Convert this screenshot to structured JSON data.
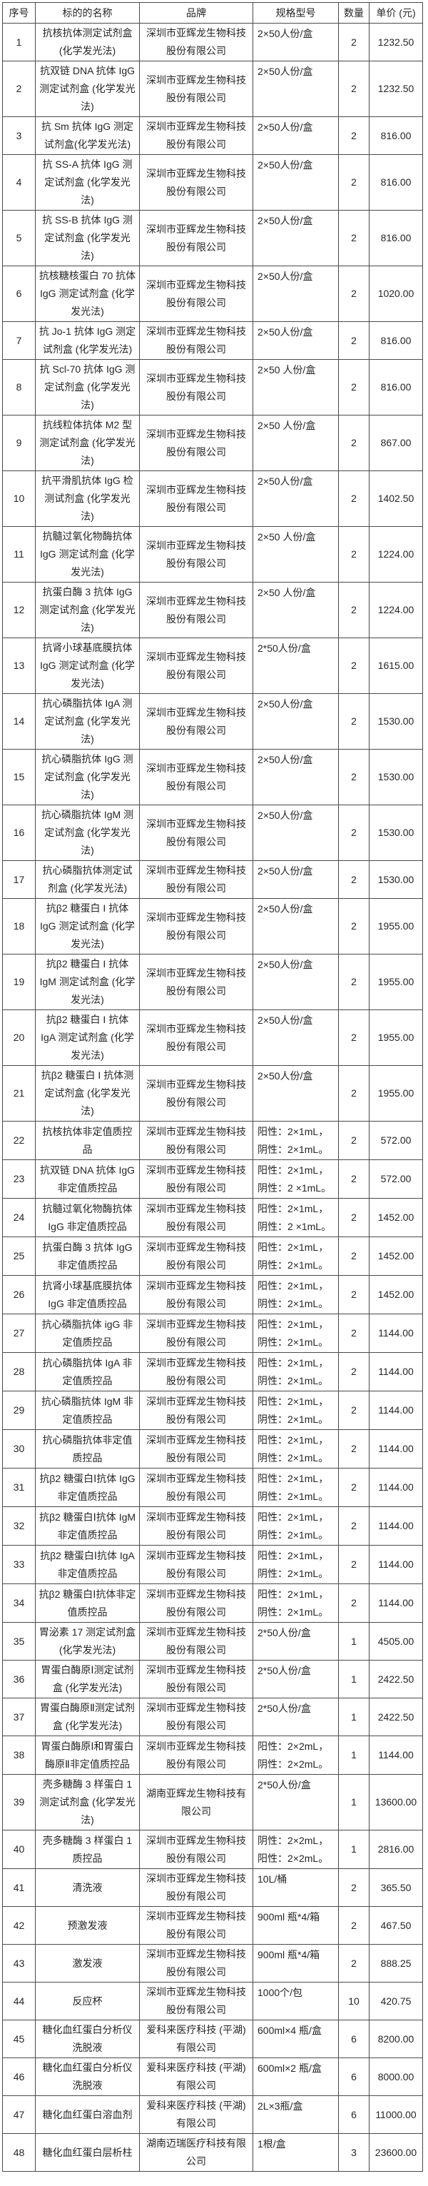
{
  "colors": {
    "border": "#4a4a4a",
    "text": "#262626",
    "background": "#ffffff"
  },
  "table": {
    "headers": [
      "序号",
      "标的的名称",
      "品牌",
      "规格型号",
      "数量",
      "单价 (元)"
    ],
    "rows": [
      {
        "no": "1",
        "name": "抗核抗体测定试剂盒 (化学发光法)",
        "brand": "深圳市亚辉龙生物科技股份有限公司",
        "spec": "2×50人份/盒",
        "qty": "2",
        "price": "1232.50"
      },
      {
        "no": "2",
        "name": "抗双链 DNA 抗体 IgG 测定试剂盒 (化学发光法)",
        "brand": "深圳市亚辉龙生物科技股份有限公司",
        "spec": "2×50人份/盒",
        "qty": "2",
        "price": "1232.50"
      },
      {
        "no": "3",
        "name": "抗 Sm 抗体 IgG 测定试剂盒(化学发光法)",
        "brand": "深圳市亚辉龙生物科技股份有限公司",
        "spec": "2×50人份/盒",
        "qty": "2",
        "price": "816.00"
      },
      {
        "no": "4",
        "name": "抗 SS-A 抗体 IgG 测定试剂盒 (化学发光法)",
        "brand": "深圳市亚辉龙生物科技股份有限公司",
        "spec": "2×50人份/盒",
        "qty": "2",
        "price": "816.00"
      },
      {
        "no": "5",
        "name": "抗 SS-B 抗体 IgG 测定试剂盒 (化学发光法)",
        "brand": "深圳市亚辉龙生物科技股份有限公司",
        "spec": "2×50人份/盒",
        "qty": "2",
        "price": "816.00"
      },
      {
        "no": "6",
        "name": "抗核糖核蛋白 70 抗体 IgG 测定试剂盒 (化学发光法)",
        "brand": "深圳市亚辉龙生物科技股份有限公司",
        "spec": "2×50人份/盒",
        "qty": "2",
        "price": "1020.00"
      },
      {
        "no": "7",
        "name": "抗 Jo-1 抗体 IgG 测定试剂盒 (化学发光法)",
        "brand": "深圳市亚辉龙生物科技股份有限公司",
        "spec": "2×50人份/盒",
        "qty": "2",
        "price": "816.00"
      },
      {
        "no": "8",
        "name": "抗 Scl-70 抗体 IgG 测定试剂盒 (化学发光法)",
        "brand": "深圳市亚辉龙生物科技股份有限公司",
        "spec": "2×50 人份/盒",
        "qty": "2",
        "price": "816.00"
      },
      {
        "no": "9",
        "name": "抗线粒体抗体 M2 型测定试剂盒 (化学发光法)",
        "brand": "深圳市亚辉龙生物科技股份有限公司",
        "spec": "2×50 人份/盒",
        "qty": "2",
        "price": "867.00"
      },
      {
        "no": "10",
        "name": "抗平滑肌抗体 IgG 检测试剂盒 (化学发光法)",
        "brand": "深圳市亚辉龙生物科技股份有限公司",
        "spec": "2×50人份/盒",
        "qty": "2",
        "price": "1402.50"
      },
      {
        "no": "11",
        "name": "抗髓过氧化物酶抗体 IgG 测定试剂盒 (化学发光法)",
        "brand": "深圳市亚辉龙生物科技股份有限公司",
        "spec": "2×50 人份/盒",
        "qty": "2",
        "price": "1224.00"
      },
      {
        "no": "12",
        "name": "抗蛋白酶 3 抗体 IgG 测定试剂盒 (化学发光法)",
        "brand": "深圳市亚辉龙生物科技股份有限公司",
        "spec": "2×50 人份/盒",
        "qty": "2",
        "price": "1224.00"
      },
      {
        "no": "13",
        "name": "抗肾小球基底膜抗体 IgG 测定试剂盒 (化学发光法)",
        "brand": "深圳市亚辉龙生物科技股份有限公司",
        "spec": "2*50人份/盒",
        "qty": "2",
        "price": "1615.00"
      },
      {
        "no": "14",
        "name": "抗心磷脂抗体 IgA 测定试剂盒 (化学发光法)",
        "brand": "深圳市亚辉龙生物科技股份有限公司",
        "spec": "2×50人份/盒",
        "qty": "2",
        "price": "1530.00"
      },
      {
        "no": "15",
        "name": "抗心磷脂抗体 IgG 测定试剂盒 (化学发光法)",
        "brand": "深圳市亚辉龙生物科技股份有限公司",
        "spec": "2×50人份/盒",
        "qty": "2",
        "price": "1530.00"
      },
      {
        "no": "16",
        "name": "抗心磷脂抗体 IgM 测定试剂盒 (化学发光法)",
        "brand": "深圳市亚辉龙生物科技股份有限公司",
        "spec": "2×50人份/盒",
        "qty": "2",
        "price": "1530.00"
      },
      {
        "no": "17",
        "name": "抗心磷脂抗体测定试剂盒 (化学发光法)",
        "brand": "深圳市亚辉龙生物科技股份有限公司",
        "spec": "2×50人份/盒",
        "qty": "2",
        "price": "1530.00"
      },
      {
        "no": "18",
        "name": "抗β2 糖蛋白 I 抗体 IgG 测定试剂盒 (化学发光法)",
        "brand": "深圳市亚辉龙生物科技股份有限公司",
        "spec": "2×50人份/盒",
        "qty": "2",
        "price": "1955.00"
      },
      {
        "no": "19",
        "name": "抗β2 糖蛋白 I 抗体 IgM 测定试剂盒 (化学发光法)",
        "brand": "深圳市亚辉龙生物科技股份有限公司",
        "spec": "2×50人份/盒",
        "qty": "2",
        "price": "1955.00"
      },
      {
        "no": "20",
        "name": "抗β2 糖蛋白 I 抗体 IgA 测定试剂盒 (化学发光法)",
        "brand": "深圳市亚辉龙生物科技股份有限公司",
        "spec": "2×50人份/盒",
        "qty": "2",
        "price": "1955.00"
      },
      {
        "no": "21",
        "name": "抗β2 糖蛋白 I 抗体测定试剂盒 (化学发光法)",
        "brand": "深圳市亚辉龙生物科技股份有限公司",
        "spec": "2×50人份/盒",
        "qty": "2",
        "price": "1955.00"
      },
      {
        "no": "22",
        "name": "抗核抗体非定值质控品",
        "brand": "深圳市亚辉龙生物科技股份有限公司",
        "spec": "阳性：2×1mL，阴性：2×1mL。",
        "qty": "2",
        "price": "572.00"
      },
      {
        "no": "23",
        "name": "抗双链 DNA 抗体 IgG 非定值质控品",
        "brand": "深圳市亚辉龙生物科技股份有限公司",
        "spec": "阳性：2×1mL，阴性：2 ×1mL。",
        "qty": "2",
        "price": "572.00"
      },
      {
        "no": "24",
        "name": "抗髓过氧化物酶抗体 IgG 非定值质控品",
        "brand": "深圳市亚辉龙生物科技股份有限公司",
        "spec": "阳性：2×1mL，阴性：2 ×1mL。",
        "qty": "2",
        "price": "1452.00"
      },
      {
        "no": "25",
        "name": "抗蛋白酶 3 抗体 IgG 非定值质控品",
        "brand": "深圳市亚辉龙生物科技股份有限公司",
        "spec": "阳性：2×1mL，阴性：2×1mL。",
        "qty": "2",
        "price": "1452.00"
      },
      {
        "no": "26",
        "name": "抗肾小球基底膜抗体 IgG 非定值质控品",
        "brand": "深圳市亚辉龙生物科技股份有限公司",
        "spec": "阳性：2×1mL，阴性：2×1mL。",
        "qty": "2",
        "price": "1452.00"
      },
      {
        "no": "27",
        "name": "抗心磷脂抗体 igG 非定值质控品",
        "brand": "深圳市亚辉龙生物科技股份有限公司",
        "spec": "阳性：2×1mL，阴性：2×1mL。",
        "qty": "2",
        "price": "1144.00"
      },
      {
        "no": "28",
        "name": "抗心磷脂抗体 IgA 非定值质控品",
        "brand": "深圳市亚辉龙生物科技股份有限公司",
        "spec": "阳性：2×1mL，阴性：2×1mL。",
        "qty": "2",
        "price": "1144.00"
      },
      {
        "no": "29",
        "name": "抗心磷脂抗体 IgM 非定值质控品",
        "brand": "深圳市亚辉龙生物科技股份有限公司",
        "spec": "阳性：2×1mL，阴性：2×1mL。",
        "qty": "2",
        "price": "1144.00"
      },
      {
        "no": "30",
        "name": "抗心磷脂抗体非定值质控品",
        "brand": "深圳市亚辉龙生物科技股份有限公司",
        "spec": "阳性：2×1mL，阴性：2×1mL。",
        "qty": "2",
        "price": "1144.00"
      },
      {
        "no": "31",
        "name": "抗β2 糖蛋白Ⅰ抗体 IgG 非定值质控品",
        "brand": "深圳市亚辉龙生物科技股份有限公司",
        "spec": "阳性：2×1mL，阴性：2×1mL。",
        "qty": "2",
        "price": "1144.00"
      },
      {
        "no": "32",
        "name": "抗β2 糖蛋白Ⅰ抗体 IgM 非定值质控品",
        "brand": "深圳市亚辉龙生物科技股份有限公司",
        "spec": "阳性：2×1mL，阴性：2×1mL。",
        "qty": "2",
        "price": "1144.00"
      },
      {
        "no": "33",
        "name": "抗β2 糖蛋白Ⅰ抗体 IgA 非定值质控品",
        "brand": "深圳市亚辉龙生物科技股份有限公司",
        "spec": "阳性：2×1mL，阴性：2×1mL。",
        "qty": "2",
        "price": "1144.00"
      },
      {
        "no": "34",
        "name": "抗β2 糖蛋白Ⅰ抗体非定值质控品",
        "brand": "深圳市亚辉龙生物科技股份有限公司",
        "spec": "阳性：2×1mL，阴性：2×1mL。",
        "qty": "2",
        "price": "1144.00"
      },
      {
        "no": "35",
        "name": "胃泌素 17 测定试剂盒 (化学发光法)",
        "brand": "深圳市亚辉龙生物科技股份有限公司",
        "spec": "2*50人份/盒",
        "qty": "1",
        "price": "4505.00"
      },
      {
        "no": "36",
        "name": "胃蛋白酶原Ⅰ测定试剂盒 (化学发光法)",
        "brand": "深圳市亚辉龙生物科技股份有限公司",
        "spec": "2*50人份/盒",
        "qty": "1",
        "price": "2422.50"
      },
      {
        "no": "37",
        "name": "胃蛋白酶原Ⅱ测定试剂盒 (化学发光法)",
        "brand": "深圳市亚辉龙生物科技股份有限公司",
        "spec": "2*50人份/盒",
        "qty": "1",
        "price": "2422.50"
      },
      {
        "no": "38",
        "name": "胃蛋白酶原Ⅰ和胃蛋白酶原Ⅱ非定值质控品",
        "brand": "深圳市亚辉龙生物科技股份有限公司",
        "spec": "阳性：2×2mL，阴性：2×2mL。",
        "qty": "1",
        "price": "1144.00"
      },
      {
        "no": "39",
        "name": "壳多糖酶 3 样蛋白 1 测定试剂盒 (化学发光法)",
        "brand": "湖南亚辉龙生物科技有限公司",
        "spec": "2*50人份/盒",
        "qty": "1",
        "price": "13600.00"
      },
      {
        "no": "40",
        "name": "壳多糖酶 3 样蛋白 1 质控品",
        "brand": "深圳市亚辉龙生物科技股份有限公司",
        "spec": "阴性：2×2mL，阳性：2×2mL。",
        "qty": "1",
        "price": "2816.00"
      },
      {
        "no": "41",
        "name": "清洗液",
        "brand": "深圳市亚辉龙生物科技股份有限公司",
        "spec": "10L/桶",
        "qty": "2",
        "price": "365.50"
      },
      {
        "no": "42",
        "name": "预激发液",
        "brand": "深圳市亚辉龙生物科技股份有限公司",
        "spec": "900ml 瓶*4/箱",
        "qty": "2",
        "price": "467.50"
      },
      {
        "no": "43",
        "name": "激发液",
        "brand": "深圳市亚辉龙生物科技股份有限公司",
        "spec": "900ml 瓶*4/箱",
        "qty": "2",
        "price": "888.25"
      },
      {
        "no": "44",
        "name": "反应杯",
        "brand": "深圳市亚辉龙生物科技股份有限公司",
        "spec": "1000个/包",
        "qty": "10",
        "price": "420.75"
      },
      {
        "no": "45",
        "name": "糖化血红蛋白分析仪洗脱液",
        "brand": "爱科来医疗科技 (平湖) 有限公司",
        "spec": "600ml×4 瓶/盒",
        "qty": "6",
        "price": "8200.00"
      },
      {
        "no": "46",
        "name": "糖化血红蛋白分析仪洗脱液",
        "brand": "爱科来医疗科技 (平湖) 有限公司",
        "spec": "600ml×2 瓶/盒",
        "qty": "6",
        "price": "8000.00"
      },
      {
        "no": "47",
        "name": "糖化血红蛋白溶血剂",
        "brand": "爱科来医疗科技 (平湖) 有限公司",
        "spec": "2L×3瓶/盒",
        "qty": "6",
        "price": "11000.00"
      },
      {
        "no": "48",
        "name": "糖化血红蛋白层析柱",
        "brand": "湖南迈瑞医疗科技有限公司",
        "spec": "1根/盒",
        "qty": "3",
        "price": "23600.00"
      }
    ]
  }
}
